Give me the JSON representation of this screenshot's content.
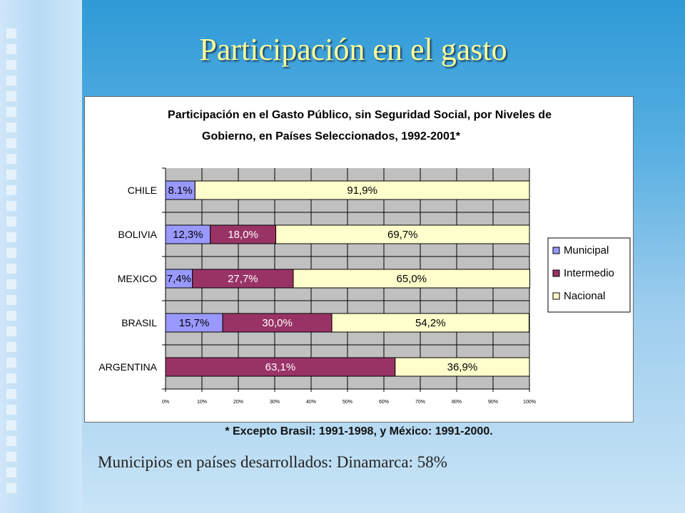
{
  "slide": {
    "title": "Participación en el gasto",
    "footnote": "* Excepto Brasil: 1991-1998, y México: 1991-2000.",
    "bottom_text": "Municipios en países desarrollados: Dinamarca: 58%"
  },
  "chart_data": {
    "type": "bar",
    "orientation": "horizontal",
    "stacked": true,
    "title_lines": [
      "Participación en el Gasto Público, sin Seguridad Social, por Niveles de",
      "Gobierno, en Países Seleccionados, 1992-2001*"
    ],
    "categories": [
      "CHILE",
      "BOLIVIA",
      "MEXICO",
      "BRASIL",
      "ARGENTINA"
    ],
    "series": [
      {
        "name": "Municipal",
        "color": "#9999ff",
        "values": [
          8.1,
          12.3,
          7.4,
          15.7,
          0
        ],
        "labels": [
          "8.1%",
          "12,3%",
          "7,4%",
          "15,7%",
          ""
        ]
      },
      {
        "name": "Intermedio",
        "color": "#993366",
        "values": [
          0,
          18.0,
          27.7,
          30.0,
          63.1
        ],
        "labels": [
          "",
          "18,0%",
          "27,7%",
          "30,0%",
          "63,1%"
        ]
      },
      {
        "name": "Nacional",
        "color": "#ffffcc",
        "values": [
          91.9,
          69.7,
          65.0,
          54.2,
          36.9
        ],
        "labels": [
          "91,9%",
          "69,7%",
          "65,0%",
          "54,2%",
          "36,9%"
        ]
      }
    ],
    "xlim": [
      0,
      100
    ],
    "x_ticks": [
      "0%",
      "10%",
      "20%",
      "30%",
      "40%",
      "50%",
      "60%",
      "70%",
      "80%",
      "90%",
      "100%"
    ],
    "grid": true,
    "plot_background": "#c0c0c0",
    "legend_position": "right"
  }
}
